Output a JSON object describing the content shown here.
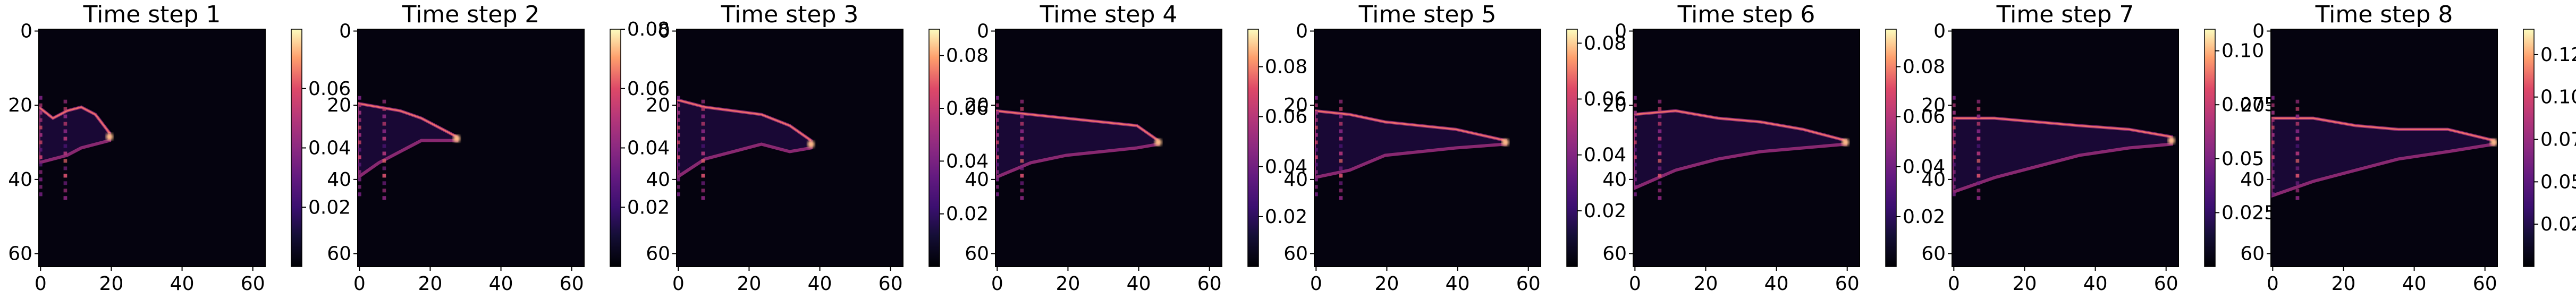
{
  "chart_data": {
    "type": "heatmap",
    "colormap": "magma",
    "image_grid": {
      "rows": 64,
      "cols": 64
    },
    "panels": [
      {
        "title": "Time step 1",
        "xticks": [
          0,
          20,
          40,
          60
        ],
        "yticks": [
          0,
          20,
          40,
          60
        ],
        "colorbar_ticks": [
          0.02,
          0.04,
          0.06
        ],
        "vmin": 0.0,
        "vmax": 0.08,
        "front_x": 20,
        "plume": [
          [
            0,
            21,
            36
          ],
          [
            4,
            24,
            35
          ],
          [
            8,
            22,
            34
          ],
          [
            12,
            21,
            32
          ],
          [
            16,
            23,
            31
          ],
          [
            20,
            28,
            30
          ]
        ]
      },
      {
        "title": "Time step 2",
        "xticks": [
          0,
          20,
          40,
          60
        ],
        "yticks": [
          0,
          20,
          40,
          60
        ],
        "colorbar_ticks": [
          0.02,
          0.04,
          0.06,
          0.08
        ],
        "vmin": 0.0,
        "vmax": 0.08,
        "front_x": 28,
        "plume": [
          [
            0,
            20,
            40
          ],
          [
            6,
            21,
            36
          ],
          [
            12,
            22,
            33
          ],
          [
            18,
            24,
            30
          ],
          [
            24,
            27,
            30
          ],
          [
            28,
            29,
            30
          ]
        ]
      },
      {
        "title": "Time step 3",
        "xticks": [
          0,
          20,
          40,
          60
        ],
        "yticks": [
          0,
          20,
          40,
          60
        ],
        "colorbar_ticks": [
          0.02,
          0.04,
          0.06,
          0.08
        ],
        "vmin": 0.0,
        "vmax": 0.09,
        "front_x": 38,
        "plume": [
          [
            0,
            19,
            40
          ],
          [
            8,
            21,
            35
          ],
          [
            16,
            22,
            33
          ],
          [
            24,
            23,
            31
          ],
          [
            32,
            26,
            33
          ],
          [
            38,
            30,
            32
          ]
        ]
      },
      {
        "title": "Time step 4",
        "xticks": [
          0,
          20,
          40,
          60
        ],
        "yticks": [
          0,
          20,
          40,
          60
        ],
        "colorbar_ticks": [
          0.02,
          0.04,
          0.06,
          0.08
        ],
        "vmin": 0.0,
        "vmax": 0.095,
        "front_x": 46,
        "plume": [
          [
            0,
            22,
            40
          ],
          [
            10,
            23,
            36
          ],
          [
            20,
            24,
            34
          ],
          [
            30,
            25,
            33
          ],
          [
            40,
            26,
            32
          ],
          [
            46,
            30,
            31
          ]
        ]
      },
      {
        "title": "Time step 5",
        "xticks": [
          0,
          20,
          40,
          60
        ],
        "yticks": [
          0,
          20,
          40,
          60
        ],
        "colorbar_ticks": [
          0.02,
          0.04,
          0.06,
          0.08
        ],
        "vmin": 0.0,
        "vmax": 0.085,
        "front_x": 54,
        "plume": [
          [
            0,
            22,
            40
          ],
          [
            10,
            23,
            38
          ],
          [
            20,
            25,
            34
          ],
          [
            30,
            26,
            33
          ],
          [
            40,
            27,
            32
          ],
          [
            54,
            30,
            31
          ]
        ]
      },
      {
        "title": "Time step 6",
        "xticks": [
          0,
          20,
          40,
          60
        ],
        "yticks": [
          0,
          20,
          40,
          60
        ],
        "colorbar_ticks": [
          0.02,
          0.04,
          0.06,
          0.08
        ],
        "vmin": 0.0,
        "vmax": 0.095,
        "front_x": 60,
        "plume": [
          [
            0,
            23,
            43
          ],
          [
            12,
            22,
            38
          ],
          [
            24,
            24,
            35
          ],
          [
            36,
            25,
            33
          ],
          [
            48,
            27,
            32
          ],
          [
            60,
            30,
            31
          ]
        ]
      },
      {
        "title": "Time step 7",
        "xticks": [
          0,
          20,
          40,
          60
        ],
        "yticks": [
          0,
          20,
          40,
          60
        ],
        "colorbar_ticks": [
          0.025,
          0.05,
          0.075,
          0.1
        ],
        "vmin": 0.0,
        "vmax": 0.11,
        "front_x": 62,
        "plume": [
          [
            0,
            24,
            44
          ],
          [
            12,
            24,
            40
          ],
          [
            24,
            25,
            37
          ],
          [
            36,
            26,
            34
          ],
          [
            50,
            27,
            32
          ],
          [
            62,
            29,
            31
          ]
        ]
      },
      {
        "title": "Time step 8",
        "xticks": [
          0,
          20,
          40,
          60
        ],
        "yticks": [
          0,
          20,
          40,
          60
        ],
        "colorbar_ticks": [
          0.025,
          0.05,
          0.075,
          0.1,
          0.125
        ],
        "vmin": 0.0,
        "vmax": 0.14,
        "front_x": 63,
        "plume": [
          [
            0,
            24,
            45
          ],
          [
            12,
            24,
            41
          ],
          [
            24,
            26,
            38
          ],
          [
            36,
            27,
            35
          ],
          [
            50,
            27,
            33
          ],
          [
            63,
            30,
            31
          ]
        ]
      }
    ]
  }
}
